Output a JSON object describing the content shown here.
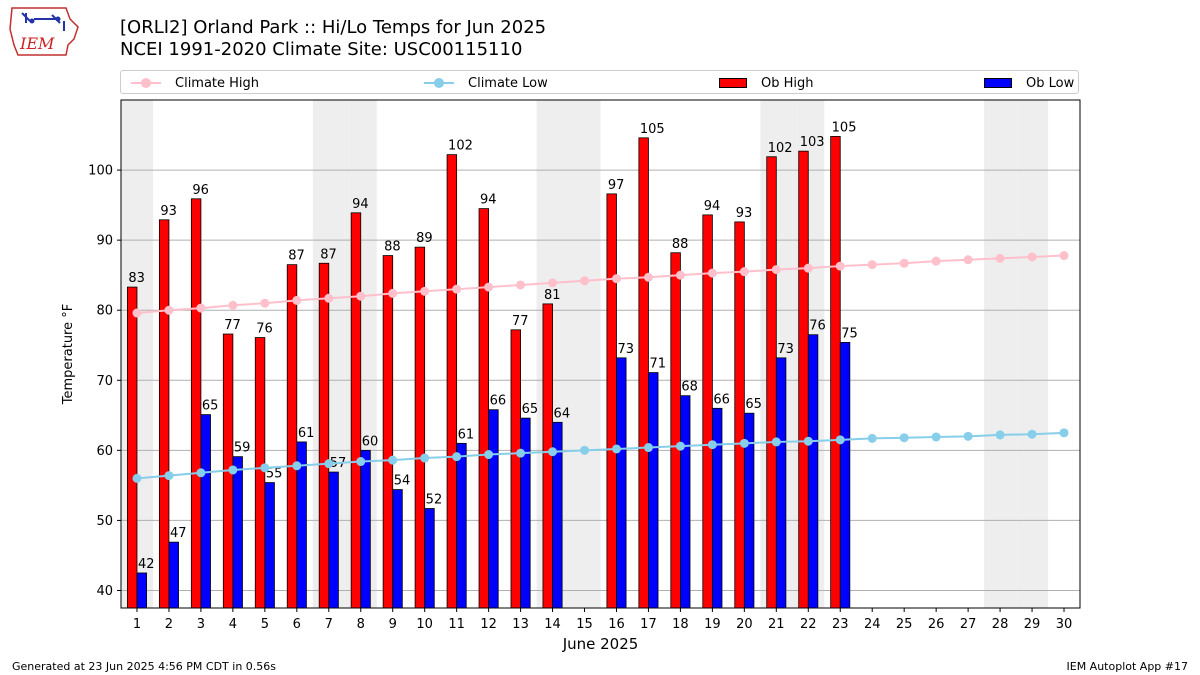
{
  "header": {
    "title_line1": "[ORLI2] Orland Park :: Hi/Lo Temps for Jun 2025",
    "title_line2": "NCEI 1991-2020 Climate Site: USC00115110",
    "logo_text": "IEM"
  },
  "footer": {
    "left": "Generated at 23 Jun 2025 4:56 PM CDT in 0.56s",
    "right": "IEM Autoplot App #17"
  },
  "legend": {
    "climate_high": "Climate High",
    "climate_low": "Climate Low",
    "ob_high": "Ob High",
    "ob_low": "Ob Low"
  },
  "colors": {
    "ob_high": "#ff0000",
    "ob_low": "#0000ff",
    "climate_high": "#ffc0cb",
    "climate_low": "#87ceeb",
    "weekend_shade": "#eeeeee",
    "grid": "#b0b0b0"
  },
  "chart_data": {
    "type": "bar",
    "xlabel": "June 2025",
    "ylabel": "Temperature °F",
    "ylim": [
      37.5,
      110
    ],
    "yticks": [
      40,
      50,
      60,
      70,
      80,
      90,
      100
    ],
    "grid": "horizontal",
    "legend_position": "top",
    "categories": [
      1,
      2,
      3,
      4,
      5,
      6,
      7,
      8,
      9,
      10,
      11,
      12,
      13,
      14,
      15,
      16,
      17,
      18,
      19,
      20,
      21,
      22,
      23,
      24,
      25,
      26,
      27,
      28,
      29,
      30
    ],
    "weekend_days": [
      1,
      7,
      8,
      14,
      15,
      21,
      22,
      28,
      29
    ],
    "series": [
      {
        "name": "Ob High",
        "kind": "bar",
        "values": [
          83.3,
          92.9,
          95.9,
          76.6,
          76.1,
          86.5,
          86.7,
          93.9,
          87.8,
          89.0,
          102.2,
          94.5,
          77.2,
          80.9,
          null,
          96.6,
          104.6,
          88.2,
          93.6,
          92.6,
          101.9,
          102.7,
          104.8,
          null,
          null,
          null,
          null,
          null,
          null,
          null
        ],
        "labels": [
          "83",
          "93",
          "96",
          "77",
          "76",
          "87",
          "87",
          "94",
          "88",
          "89",
          "102",
          "94",
          "77",
          "81",
          "",
          "97",
          "105",
          "88",
          "94",
          "93",
          "102",
          "103",
          "105",
          "",
          "",
          "",
          "",
          "",
          "",
          ""
        ]
      },
      {
        "name": "Ob Low",
        "kind": "bar",
        "values": [
          42.5,
          46.9,
          65.1,
          59.1,
          55.4,
          61.2,
          56.9,
          60.0,
          54.4,
          51.7,
          61.0,
          65.8,
          64.6,
          64.0,
          null,
          73.2,
          71.1,
          67.8,
          66.0,
          65.3,
          73.2,
          76.5,
          75.4,
          null,
          null,
          null,
          null,
          null,
          null,
          null
        ],
        "labels": [
          "42",
          "47",
          "65",
          "59",
          "55",
          "61",
          "57",
          "60",
          "54",
          "52",
          "61",
          "66",
          "65",
          "64",
          "",
          "73",
          "71",
          "68",
          "66",
          "65",
          "73",
          "76",
          "75",
          "",
          "",
          "",
          "",
          "",
          "",
          ""
        ]
      },
      {
        "name": "Climate High",
        "kind": "line",
        "values": [
          79.6,
          80.0,
          80.3,
          80.7,
          81.0,
          81.4,
          81.7,
          82.0,
          82.4,
          82.7,
          83.0,
          83.3,
          83.6,
          83.9,
          84.2,
          84.5,
          84.7,
          85.0,
          85.3,
          85.5,
          85.8,
          86.0,
          86.3,
          86.5,
          86.7,
          87.0,
          87.2,
          87.4,
          87.6,
          87.8
        ]
      },
      {
        "name": "Climate Low",
        "kind": "line",
        "values": [
          56.0,
          56.4,
          56.8,
          57.2,
          57.5,
          57.8,
          58.1,
          58.4,
          58.6,
          58.9,
          59.1,
          59.4,
          59.6,
          59.8,
          60.0,
          60.2,
          60.4,
          60.6,
          60.8,
          61.0,
          61.2,
          61.3,
          61.5,
          61.7,
          61.8,
          61.9,
          62.0,
          62.2,
          62.3,
          62.5
        ]
      }
    ]
  }
}
